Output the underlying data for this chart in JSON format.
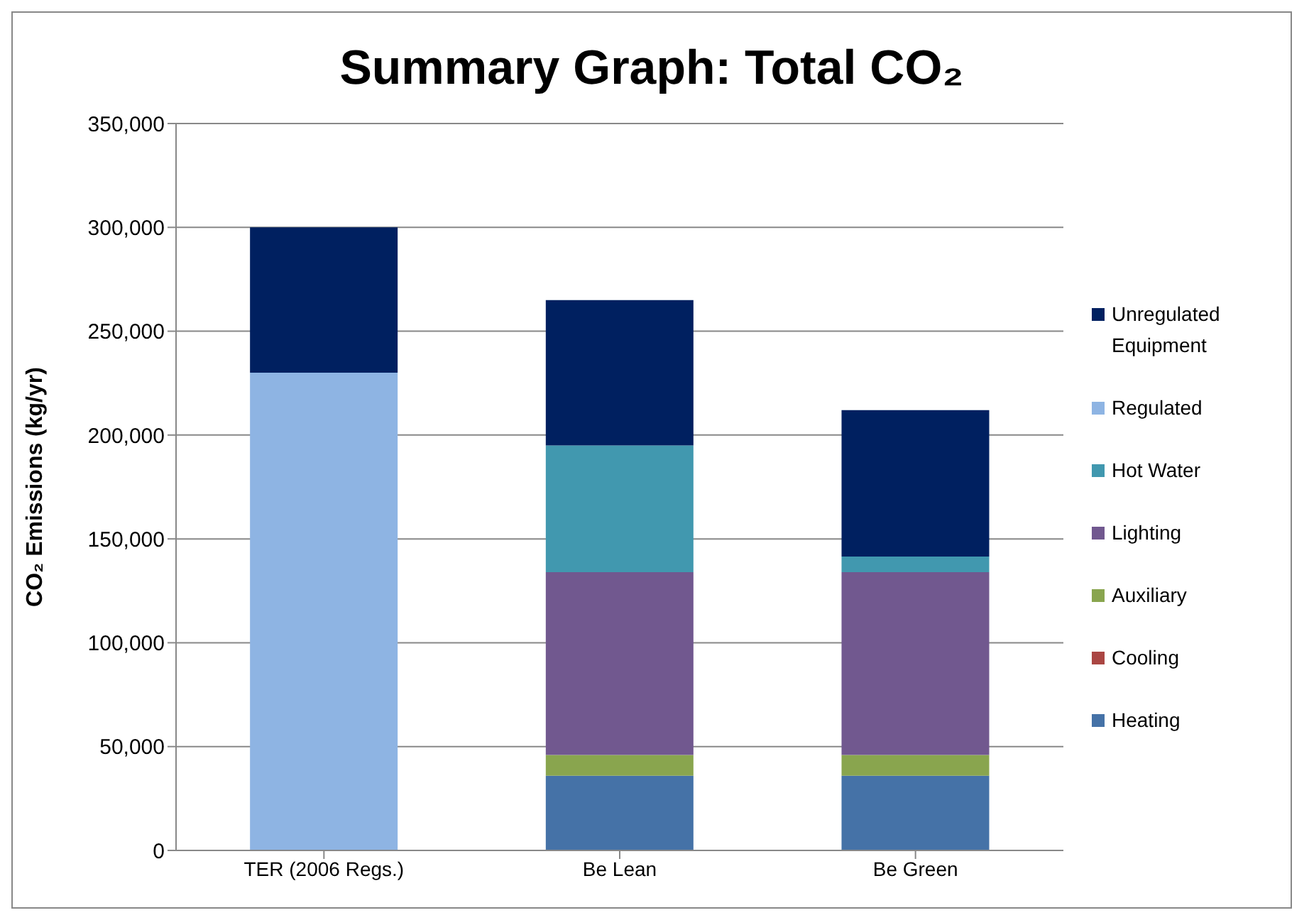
{
  "chart_data": {
    "type": "bar",
    "title": "Summary Graph: Total CO₂",
    "ylabel": "CO₂ Emissions (kg/yr)",
    "categories": [
      "TER (2006 Regs.)",
      "Be Lean",
      "Be Green"
    ],
    "stacked": true,
    "series": [
      {
        "name": "Heating",
        "color": "#4572a7",
        "values": [
          null,
          36000,
          36000
        ]
      },
      {
        "name": "Cooling",
        "color": "#aa4643",
        "values": [
          null,
          0,
          0
        ]
      },
      {
        "name": "Auxiliary",
        "color": "#89a54e",
        "values": [
          null,
          10000,
          10000
        ]
      },
      {
        "name": "Lighting",
        "color": "#71588f",
        "values": [
          null,
          88000,
          88000
        ]
      },
      {
        "name": "Hot Water",
        "color": "#4198af",
        "values": [
          null,
          61000,
          7500
        ]
      },
      {
        "name": "Regulated",
        "color": "#8eb4e3",
        "values": [
          230000,
          null,
          null
        ]
      },
      {
        "name": "Unregulated Equipment",
        "color": "#002060",
        "values": [
          70000,
          70000,
          70500
        ]
      }
    ],
    "ylim": [
      0,
      350000
    ],
    "yticks": [
      0,
      {
        "value": 50000,
        "label": "50,000"
      },
      {
        "value": 100000,
        "label": "100,000"
      },
      {
        "value": 150000,
        "label": "150,000"
      },
      {
        "value": 200000,
        "label": "200,000"
      },
      {
        "value": 250000,
        "label": "250,000"
      },
      {
        "value": 300000,
        "label": "300,000"
      },
      {
        "value": 350000,
        "label": "350,000"
      }
    ],
    "grid": "y",
    "legend": "right"
  }
}
